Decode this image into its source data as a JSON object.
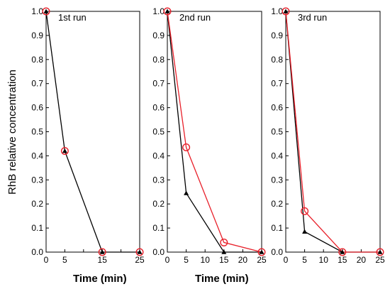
{
  "chart_data": {
    "type": "line",
    "ylabel": "RhB relative concentration",
    "colors": {
      "black_series": "#000000",
      "red_series": "#e8202a"
    },
    "panels": [
      {
        "label": "1st run",
        "xlabel": "Time (min)",
        "xlim": [
          0,
          25
        ],
        "ylim": [
          0,
          1.0
        ],
        "xticks": [
          0,
          5,
          10,
          15,
          20,
          25
        ],
        "xtick_labels": [
          "0",
          "5",
          "",
          "15",
          "",
          "25"
        ],
        "yticks": [
          0,
          0.1,
          0.2,
          0.3,
          0.4,
          0.5,
          0.6,
          0.7,
          0.8,
          0.9,
          1.0
        ],
        "ytick_labels": [
          "0.0",
          "0.1",
          "0.2",
          "0.3",
          "0.4",
          "0.5",
          "0.6",
          "0.7",
          "0.8",
          "0.9",
          "1.0"
        ],
        "series": [
          {
            "marker": "triangle",
            "color": "#000000",
            "line": true,
            "x": [
              0,
              5,
              15,
              25
            ],
            "y": [
              1.0,
              0.42,
              0.0,
              0.0
            ]
          },
          {
            "marker": "circle",
            "color": "#e8202a",
            "line": false,
            "x": [
              0,
              5,
              15,
              25
            ],
            "y": [
              1.0,
              0.42,
              0.0,
              0.0
            ]
          }
        ]
      },
      {
        "label": "2nd run",
        "xlabel": "Time (min)",
        "xlim": [
          0,
          25
        ],
        "ylim": [
          0,
          1.0
        ],
        "xticks": [
          0,
          5,
          10,
          15,
          20,
          25
        ],
        "xtick_labels": [
          "0",
          "5",
          "10",
          "15",
          "20",
          "25"
        ],
        "yticks": [
          0,
          0.1,
          0.2,
          0.3,
          0.4,
          0.5,
          0.6,
          0.7,
          0.8,
          0.9,
          1.0
        ],
        "ytick_labels": [
          "0.0",
          "0.1",
          "0.2",
          "0.3",
          "0.4",
          "0.5",
          "0.6",
          "0.7",
          "0.8",
          "0.9",
          "1.0"
        ],
        "series": [
          {
            "marker": "triangle",
            "color": "#000000",
            "line": true,
            "x": [
              0,
              5,
              15,
              25
            ],
            "y": [
              1.0,
              0.245,
              0.0,
              0.0
            ]
          },
          {
            "marker": "circle",
            "color": "#e8202a",
            "line": true,
            "x": [
              0,
              5,
              15,
              25
            ],
            "y": [
              1.0,
              0.435,
              0.04,
              0.0
            ]
          }
        ]
      },
      {
        "label": "3rd run",
        "xlabel": "",
        "xlim": [
          0,
          25
        ],
        "ylim": [
          0,
          1.0
        ],
        "xticks": [
          0,
          5,
          10,
          15,
          20,
          25
        ],
        "xtick_labels": [
          "0",
          "5",
          "10",
          "15",
          "20",
          "25"
        ],
        "yticks": [
          0,
          0.1,
          0.2,
          0.3,
          0.4,
          0.5,
          0.6,
          0.7,
          0.8,
          0.9,
          1.0
        ],
        "ytick_labels": [
          "0.0",
          "0.1",
          "0.2",
          "0.3",
          "0.4",
          "0.5",
          "0.6",
          "0.7",
          "0.8",
          "0.9",
          "1.0"
        ],
        "series": [
          {
            "marker": "triangle",
            "color": "#000000",
            "line": true,
            "x": [
              0,
              5,
              15,
              25
            ],
            "y": [
              1.0,
              0.085,
              0.0,
              0.0
            ]
          },
          {
            "marker": "circle",
            "color": "#e8202a",
            "line": true,
            "x": [
              0,
              5,
              15,
              25
            ],
            "y": [
              1.0,
              0.17,
              0.0,
              0.0
            ]
          }
        ]
      }
    ]
  }
}
